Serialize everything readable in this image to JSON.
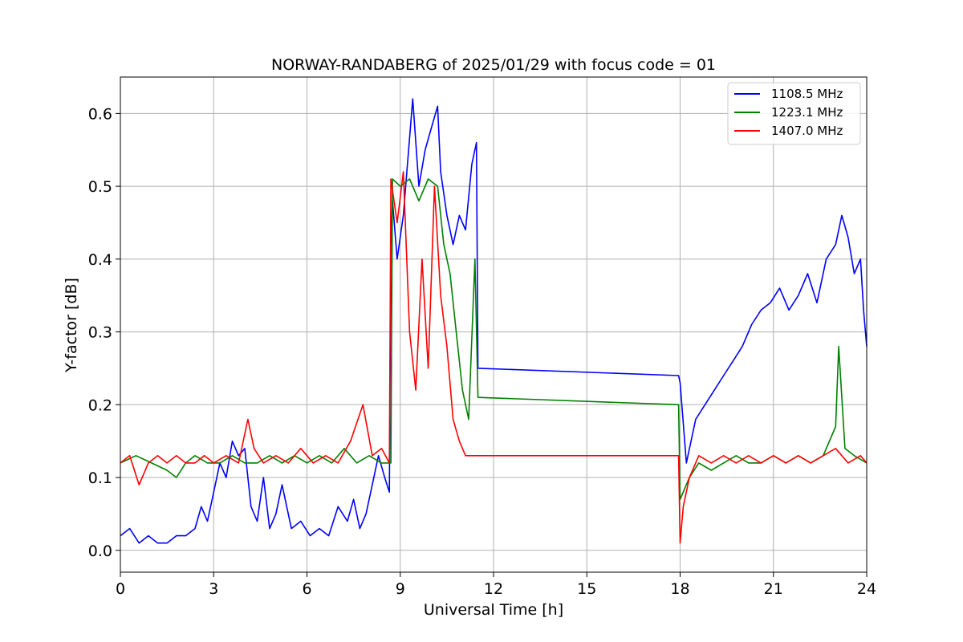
{
  "chart_data": {
    "type": "line",
    "title": "NORWAY-RANDABERG of 2025/01/29 with focus code = 01",
    "xlabel": "Universal Time [h]",
    "ylabel": "Y-factor [dB]",
    "xlim": [
      0,
      24
    ],
    "ylim": [
      -0.03,
      0.65
    ],
    "xticks": [
      0,
      3,
      6,
      9,
      12,
      15,
      18,
      21,
      24
    ],
    "yticks": [
      0.0,
      0.1,
      0.2,
      0.3,
      0.4,
      0.5,
      0.6
    ],
    "grid": true,
    "legend_position": "top-right",
    "series": [
      {
        "name": "1108.5 MHz",
        "color": "#0000ff",
        "x": [
          0.0,
          0.3,
          0.6,
          0.9,
          1.2,
          1.5,
          1.8,
          2.1,
          2.4,
          2.6,
          2.8,
          3.0,
          3.2,
          3.4,
          3.6,
          3.8,
          4.0,
          4.2,
          4.4,
          4.6,
          4.8,
          5.0,
          5.2,
          5.5,
          5.8,
          6.1,
          6.4,
          6.7,
          7.0,
          7.3,
          7.5,
          7.7,
          7.9,
          8.1,
          8.3,
          8.5,
          8.65,
          8.7,
          8.75,
          8.9,
          9.1,
          9.4,
          9.6,
          9.8,
          10.0,
          10.2,
          10.3,
          10.5,
          10.7,
          10.9,
          11.1,
          11.3,
          11.45,
          11.5,
          17.95,
          18.0,
          18.2,
          18.5,
          18.8,
          19.1,
          19.4,
          19.7,
          20.0,
          20.3,
          20.6,
          20.9,
          21.2,
          21.5,
          21.8,
          22.1,
          22.4,
          22.7,
          23.0,
          23.2,
          23.4,
          23.6,
          23.8,
          23.9,
          24.0
        ],
        "values": [
          0.02,
          0.03,
          0.01,
          0.02,
          0.01,
          0.01,
          0.02,
          0.02,
          0.03,
          0.06,
          0.04,
          0.08,
          0.12,
          0.1,
          0.15,
          0.13,
          0.14,
          0.06,
          0.04,
          0.1,
          0.03,
          0.05,
          0.09,
          0.03,
          0.04,
          0.02,
          0.03,
          0.02,
          0.06,
          0.04,
          0.07,
          0.03,
          0.05,
          0.09,
          0.13,
          0.1,
          0.08,
          0.42,
          0.48,
          0.4,
          0.46,
          0.62,
          0.5,
          0.55,
          0.58,
          0.61,
          0.52,
          0.46,
          0.42,
          0.46,
          0.44,
          0.53,
          0.56,
          0.25,
          0.24,
          0.23,
          0.12,
          0.18,
          0.2,
          0.22,
          0.24,
          0.26,
          0.28,
          0.31,
          0.33,
          0.34,
          0.36,
          0.33,
          0.35,
          0.38,
          0.34,
          0.4,
          0.42,
          0.46,
          0.43,
          0.38,
          0.4,
          0.33,
          0.28
        ]
      },
      {
        "name": "1223.1 MHz",
        "color": "#008000",
        "x": [
          0.0,
          0.5,
          1.0,
          1.5,
          1.8,
          2.1,
          2.4,
          2.8,
          3.2,
          3.6,
          4.0,
          4.4,
          4.8,
          5.2,
          5.6,
          6.0,
          6.4,
          6.8,
          7.2,
          7.6,
          8.0,
          8.4,
          8.7,
          8.75,
          9.0,
          9.3,
          9.6,
          9.9,
          10.2,
          10.4,
          10.6,
          10.8,
          11.0,
          11.2,
          11.4,
          11.5,
          17.95,
          18.0,
          18.3,
          18.6,
          19.0,
          19.4,
          19.8,
          20.2,
          20.6,
          21.0,
          21.4,
          21.8,
          22.2,
          22.6,
          23.0,
          23.1,
          23.3,
          23.6,
          24.0
        ],
        "values": [
          0.12,
          0.13,
          0.12,
          0.11,
          0.1,
          0.12,
          0.13,
          0.12,
          0.12,
          0.13,
          0.12,
          0.12,
          0.13,
          0.12,
          0.13,
          0.12,
          0.13,
          0.12,
          0.14,
          0.12,
          0.13,
          0.12,
          0.12,
          0.51,
          0.5,
          0.51,
          0.48,
          0.51,
          0.5,
          0.42,
          0.38,
          0.3,
          0.22,
          0.18,
          0.4,
          0.21,
          0.2,
          0.07,
          0.1,
          0.12,
          0.11,
          0.12,
          0.13,
          0.12,
          0.12,
          0.13,
          0.12,
          0.13,
          0.12,
          0.13,
          0.17,
          0.28,
          0.14,
          0.13,
          0.12
        ]
      },
      {
        "name": "1407.0 MHz",
        "color": "#ff0000",
        "x": [
          0.0,
          0.3,
          0.6,
          0.9,
          1.2,
          1.5,
          1.8,
          2.1,
          2.4,
          2.7,
          3.0,
          3.4,
          3.8,
          4.1,
          4.3,
          4.6,
          5.0,
          5.4,
          5.8,
          6.2,
          6.6,
          7.0,
          7.4,
          7.8,
          8.1,
          8.4,
          8.65,
          8.7,
          8.9,
          9.1,
          9.3,
          9.5,
          9.7,
          9.9,
          10.1,
          10.3,
          10.5,
          10.7,
          10.9,
          11.1,
          11.3,
          11.5,
          17.95,
          18.0,
          18.1,
          18.3,
          18.6,
          19.0,
          19.4,
          19.8,
          20.2,
          20.6,
          21.0,
          21.4,
          21.8,
          22.2,
          22.6,
          23.0,
          23.4,
          23.8,
          24.0
        ],
        "values": [
          0.12,
          0.13,
          0.09,
          0.12,
          0.13,
          0.12,
          0.13,
          0.12,
          0.12,
          0.13,
          0.12,
          0.13,
          0.12,
          0.18,
          0.14,
          0.12,
          0.13,
          0.12,
          0.14,
          0.12,
          0.13,
          0.12,
          0.15,
          0.2,
          0.13,
          0.14,
          0.12,
          0.51,
          0.45,
          0.52,
          0.3,
          0.22,
          0.4,
          0.25,
          0.5,
          0.35,
          0.28,
          0.18,
          0.15,
          0.13,
          0.13,
          0.13,
          0.13,
          0.01,
          0.06,
          0.1,
          0.13,
          0.12,
          0.13,
          0.12,
          0.13,
          0.12,
          0.13,
          0.12,
          0.13,
          0.12,
          0.13,
          0.14,
          0.12,
          0.13,
          0.12
        ]
      }
    ]
  }
}
